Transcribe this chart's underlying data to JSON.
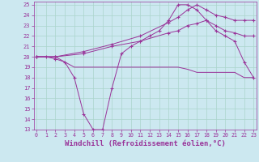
{
  "background_color": "#cce8f0",
  "grid_color": "#aad4cc",
  "line_color": "#993399",
  "xlabel": "Windchill (Refroidissement éolien,°C)",
  "xlabel_fontsize": 6.5,
  "yticks": [
    13,
    14,
    15,
    16,
    17,
    18,
    19,
    20,
    21,
    22,
    23,
    24,
    25
  ],
  "xticks": [
    0,
    1,
    2,
    3,
    4,
    5,
    6,
    7,
    8,
    9,
    10,
    11,
    12,
    13,
    14,
    15,
    16,
    17,
    18,
    19,
    20,
    21,
    22,
    23
  ],
  "xlim": [
    -0.3,
    23.3
  ],
  "ylim": [
    13,
    25.3
  ],
  "lines": [
    {
      "x": [
        0,
        1,
        2,
        3,
        4,
        5,
        6,
        7,
        8,
        9,
        10,
        11,
        12,
        13,
        14,
        15,
        16,
        17,
        18,
        19,
        20,
        21,
        22,
        23
      ],
      "y": [
        20,
        20,
        19.8,
        19.5,
        18,
        14.5,
        13,
        13,
        17,
        20.3,
        21,
        21.5,
        22,
        22.5,
        23.5,
        25,
        25,
        24.5,
        23.5,
        22.5,
        22,
        21.5,
        19.5,
        18
      ],
      "marker": true
    },
    {
      "x": [
        0,
        1,
        2,
        3,
        4,
        5,
        6,
        7,
        8,
        9,
        10,
        11,
        12,
        13,
        14,
        15,
        16,
        17,
        18,
        19,
        20,
        21,
        22,
        23
      ],
      "y": [
        20,
        20,
        20,
        19.5,
        19,
        19,
        19,
        19,
        19,
        19,
        19,
        19,
        19,
        19,
        19,
        19,
        18.8,
        18.5,
        18.5,
        18.5,
        18.5,
        18.5,
        18,
        18
      ],
      "marker": false
    },
    {
      "x": [
        0,
        2,
        5,
        8,
        11,
        14,
        15,
        16,
        17,
        18,
        19,
        20,
        21,
        22,
        23
      ],
      "y": [
        20,
        20,
        20.3,
        21,
        21.5,
        22.3,
        22.5,
        23,
        23.2,
        23.5,
        23,
        22.5,
        22.3,
        22,
        22
      ],
      "marker": true
    },
    {
      "x": [
        0,
        2,
        5,
        8,
        11,
        14,
        15,
        16,
        17,
        18,
        19,
        20,
        21,
        22,
        23
      ],
      "y": [
        20,
        20,
        20.5,
        21.2,
        22,
        23.3,
        23.8,
        24.5,
        25,
        24.5,
        24,
        23.8,
        23.5,
        23.5,
        23.5
      ],
      "marker": true
    }
  ]
}
